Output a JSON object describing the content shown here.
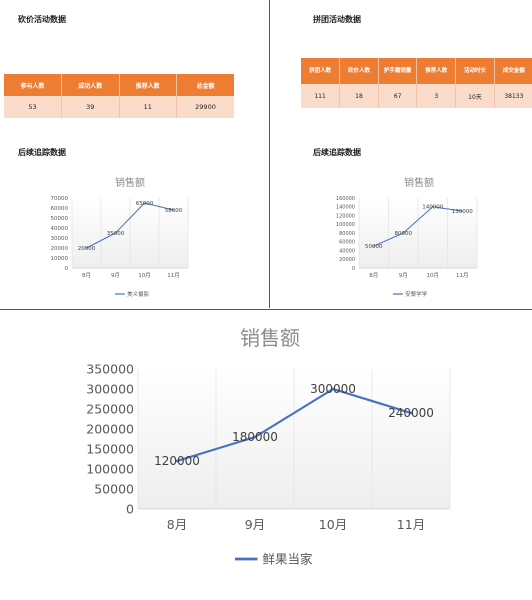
{
  "panels": {
    "top_left": {
      "table_title": "砍价活动数据",
      "table_headers": [
        "参与人数",
        "成功人数",
        "推荐人数",
        "总金额"
      ],
      "table_values": [
        "53",
        "39",
        "11",
        "29900"
      ],
      "chart_section_title": "后续追踪数据"
    },
    "top_right": {
      "table_title": "拼团活动数据",
      "table_headers": [
        "拼团人数",
        "砍价人数",
        "护手霜销量",
        "推荐人数",
        "活动时长",
        "成交金额"
      ],
      "table_values": [
        "111",
        "18",
        "67",
        "3",
        "10天",
        "38133"
      ],
      "chart_section_title": "后续追踪数据"
    }
  },
  "chart_data": [
    {
      "type": "line",
      "title": "销售额",
      "categories": [
        "8月",
        "9月",
        "10月",
        "11月"
      ],
      "series": [
        {
          "name": "美义摄影",
          "values": [
            20000,
            35000,
            65000,
            58000
          ]
        }
      ],
      "data_labels": [
        "20000",
        "35000",
        "65000",
        "58000"
      ],
      "ylim": [
        0,
        70000
      ],
      "yticks": [
        "0",
        "10000",
        "20000",
        "30000",
        "40000",
        "50000",
        "60000",
        "70000"
      ],
      "legend": "bottom",
      "color": "#4472c4"
    },
    {
      "type": "line",
      "title": "销售额",
      "categories": [
        "8月",
        "9月",
        "10月",
        "11月"
      ],
      "series": [
        {
          "name": "安黎学学",
          "values": [
            50000,
            80000,
            140000,
            130000
          ]
        }
      ],
      "data_labels": [
        "50000",
        "80000",
        "140000",
        "130000"
      ],
      "ylim": [
        0,
        160000
      ],
      "yticks": [
        "0",
        "20000",
        "40000",
        "60000",
        "80000",
        "100000",
        "120000",
        "140000",
        "160000"
      ],
      "legend": "bottom",
      "color": "#4472c4"
    },
    {
      "type": "line",
      "title": "销售额",
      "categories": [
        "8月",
        "9月",
        "10月",
        "11月"
      ],
      "series": [
        {
          "name": "鲜果当家",
          "values": [
            120000,
            180000,
            300000,
            240000
          ]
        }
      ],
      "data_labels": [
        "120000",
        "180000",
        "300000",
        "240000"
      ],
      "ylim": [
        0,
        350000
      ],
      "yticks": [
        "0",
        "50000",
        "100000",
        "150000",
        "200000",
        "250000",
        "300000",
        "350000"
      ],
      "legend": "bottom",
      "color": "#4472c4"
    }
  ]
}
